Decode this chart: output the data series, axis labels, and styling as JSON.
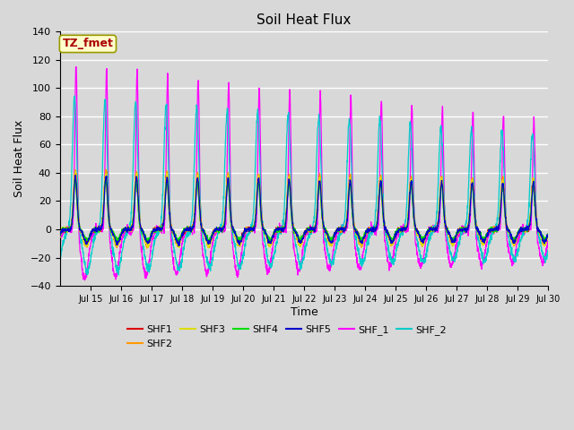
{
  "title": "Soil Heat Flux",
  "xlabel": "Time",
  "ylabel": "Soil Heat Flux",
  "ylim": [
    -40,
    140
  ],
  "xlim_days": [
    14.0,
    30.0
  ],
  "series_colors": {
    "SHF1": "#dd0000",
    "SHF2": "#ff9900",
    "SHF3": "#dddd00",
    "SHF4": "#00dd00",
    "SHF5": "#0000cc",
    "SHF_1": "#ff00ff",
    "SHF_2": "#00cccc"
  },
  "bg_color": "#d8d8d8",
  "plot_bg_color": "#d8d8d8",
  "annotation_text": "TZ_fmet",
  "annotation_bg": "#ffffcc",
  "annotation_border": "#999900",
  "annotation_text_color": "#aa0000",
  "yticks": [
    -40,
    -20,
    0,
    20,
    40,
    60,
    80,
    100,
    120,
    140
  ],
  "xtick_labels": [
    "Jul 15",
    "Jul 16",
    "Jul 17",
    "Jul 18",
    "Jul 19",
    "Jul 20",
    "Jul 21",
    "Jul 22",
    "Jul 23",
    "Jul 24",
    "Jul 25",
    "Jul 26",
    "Jul 27",
    "Jul 28",
    "Jul 29",
    "Jul 30"
  ],
  "xtick_positions": [
    15,
    16,
    17,
    18,
    19,
    20,
    21,
    22,
    23,
    24,
    25,
    26,
    27,
    28,
    29,
    30
  ]
}
